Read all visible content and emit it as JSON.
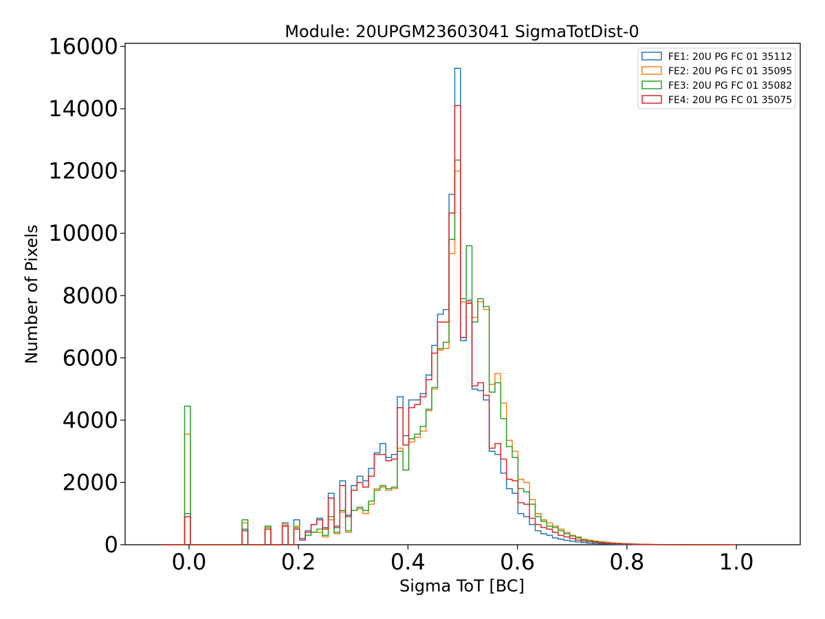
{
  "chart_data": {
    "type": "histogram",
    "title": "Module: 20UPGM23603041 SigmaTotDist-0",
    "xlabel": "Sigma ToT [BC]",
    "ylabel": "Number of Pixels",
    "xlim": [
      -0.1167,
      1.1167
    ],
    "ylim": [
      0,
      16100
    ],
    "xticks": [
      0.0,
      0.2,
      0.4,
      0.6,
      0.8,
      1.0
    ],
    "xtick_labels": [
      "0.0",
      "0.2",
      "0.4",
      "0.6",
      "0.8",
      "1.0"
    ],
    "yticks": [
      0,
      2000,
      4000,
      6000,
      8000,
      10000,
      12000,
      14000,
      16000
    ],
    "ytick_labels": [
      "0",
      "2000",
      "4000",
      "6000",
      "8000",
      "10000",
      "12000",
      "14000",
      "16000"
    ],
    "bin_start": -0.05,
    "bin_width": 0.0105,
    "legend_position": "top-right",
    "grid": false,
    "series": [
      {
        "name": "FE1: 20U PG FC 01 35112",
        "color": "#1f77b4",
        "values": [
          0,
          0,
          0,
          0,
          1000,
          0,
          0,
          0,
          0,
          0,
          0,
          0,
          0,
          0,
          500,
          0,
          0,
          0,
          550,
          0,
          0,
          700,
          0,
          800,
          200,
          450,
          650,
          850,
          550,
          1650,
          600,
          2050,
          950,
          1900,
          2200,
          2050,
          2450,
          2950,
          3250,
          2800,
          2900,
          4750,
          3500,
          4650,
          4650,
          4850,
          5450,
          6400,
          7400,
          7550,
          11250,
          15300,
          6550,
          7850,
          5000,
          4950,
          4650,
          3000,
          2900,
          2300,
          1800,
          1650,
          1000,
          900,
          650,
          450,
          350,
          300,
          220,
          180,
          140,
          110,
          90,
          70,
          50,
          40,
          30,
          25,
          20,
          15,
          10,
          10,
          8,
          6,
          5,
          4,
          3,
          2,
          2,
          1,
          1,
          1,
          1,
          1,
          1,
          1,
          0,
          0
        ]
      },
      {
        "name": "FE2: 20U PG FC 01 35095",
        "color": "#ff7f0e",
        "values": [
          0,
          0,
          0,
          0,
          3550,
          0,
          0,
          0,
          0,
          0,
          0,
          0,
          0,
          0,
          700,
          0,
          0,
          0,
          550,
          0,
          0,
          650,
          0,
          600,
          150,
          300,
          400,
          400,
          250,
          800,
          350,
          1050,
          400,
          1100,
          1150,
          1000,
          1300,
          1800,
          1850,
          1750,
          1800,
          3100,
          2400,
          3300,
          3450,
          3650,
          4300,
          5000,
          6250,
          6300,
          9350,
          12000,
          7800,
          7800,
          7300,
          7800,
          7550,
          5150,
          5500,
          4550,
          3350,
          3000,
          2100,
          2000,
          1450,
          1000,
          800,
          700,
          600,
          500,
          400,
          300,
          250,
          180,
          150,
          120,
          100,
          80,
          60,
          50,
          40,
          30,
          20,
          15,
          10,
          8,
          6,
          5,
          4,
          3,
          2,
          2,
          1,
          1,
          1,
          1,
          1,
          0,
          0
        ]
      },
      {
        "name": "FE3: 20U PG FC 01 35082",
        "color": "#2ca02c",
        "values": [
          0,
          0,
          0,
          0,
          4450,
          0,
          0,
          0,
          0,
          0,
          0,
          0,
          0,
          0,
          800,
          0,
          0,
          0,
          600,
          0,
          0,
          600,
          0,
          550,
          150,
          300,
          400,
          500,
          300,
          900,
          400,
          1100,
          450,
          1100,
          1200,
          1100,
          1400,
          1750,
          1900,
          1800,
          1850,
          3000,
          2400,
          3400,
          3550,
          3800,
          4350,
          5050,
          6300,
          6500,
          9800,
          12350,
          7900,
          9600,
          7150,
          7900,
          7650,
          4900,
          5200,
          4050,
          3150,
          2800,
          1800,
          1700,
          1300,
          900,
          750,
          600,
          550,
          450,
          350,
          280,
          220,
          160,
          130,
          100,
          80,
          60,
          50,
          40,
          30,
          25,
          20,
          15,
          10,
          8,
          6,
          5,
          4,
          3,
          2,
          2,
          1,
          1,
          1,
          1,
          1,
          0,
          0
        ]
      },
      {
        "name": "FE4: 20U PG FC 01 35075",
        "color": "#d62728",
        "values": [
          0,
          0,
          0,
          0,
          900,
          0,
          0,
          0,
          0,
          0,
          0,
          0,
          0,
          0,
          450,
          0,
          0,
          0,
          500,
          0,
          0,
          600,
          0,
          500,
          150,
          400,
          650,
          800,
          500,
          1500,
          550,
          1900,
          900,
          1750,
          2000,
          1850,
          2200,
          2900,
          2900,
          2700,
          2750,
          4400,
          3200,
          4400,
          4500,
          4750,
          5300,
          6150,
          7150,
          7150,
          10650,
          14100,
          6650,
          7750,
          5100,
          5200,
          4800,
          3100,
          3250,
          2750,
          2100,
          2050,
          1350,
          1300,
          850,
          650,
          550,
          500,
          400,
          300,
          250,
          200,
          150,
          120,
          100,
          80,
          60,
          50,
          40,
          30,
          25,
          20,
          15,
          10,
          8,
          6,
          5,
          4,
          3,
          2,
          2,
          1,
          1,
          1,
          1,
          1,
          0,
          0,
          0,
          0
        ]
      }
    ]
  }
}
